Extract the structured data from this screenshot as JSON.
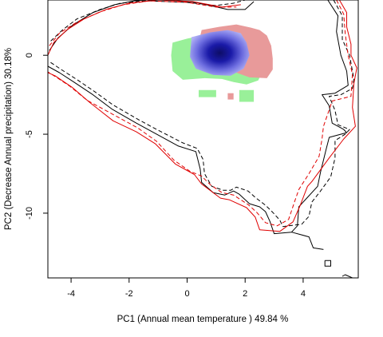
{
  "chart_data": {
    "type": "contour-density",
    "xlabel": "PC1 (Annual mean temperature ) 49.84 %",
    "ylabel": "PC2 (Decrease Annual precipitation) 30.18%",
    "xlim": [
      -4.8,
      5.9
    ],
    "ylim": [
      -14.1,
      3.5
    ],
    "xticks": [
      -4,
      -2,
      0,
      2,
      4
    ],
    "yticks": [
      0,
      -5,
      -10
    ],
    "grid": false,
    "legend": "none",
    "colors": {
      "black_envelope": "#000000",
      "red_envelope": "#e00000",
      "overlap_density": "#1a1aa8",
      "green_only": "#99f099",
      "red_only": "#e89a9a"
    },
    "series": [
      {
        "line_color": "#000000",
        "dash": "solid",
        "points": [
          [
            -4.75,
            0.3
          ],
          [
            -4.45,
            1.1
          ],
          [
            -3.95,
            1.9
          ],
          [
            -3.25,
            2.7
          ],
          [
            -2.5,
            3.2
          ],
          [
            -1.8,
            3.45
          ],
          [
            -1.0,
            3.55
          ],
          [
            0.3,
            3.35
          ],
          [
            1.4,
            2.9
          ],
          [
            2.0,
            2.9
          ],
          [
            2.3,
            3.4
          ]
        ]
      },
      {
        "line_color": "#000000",
        "dash": "solid",
        "points": [
          [
            4.85,
            3.5
          ],
          [
            5.2,
            2.5
          ],
          [
            5.15,
            1.5
          ],
          [
            5.3,
            0.0
          ],
          [
            5.5,
            -1.0
          ],
          [
            5.55,
            -1.9
          ],
          [
            5.1,
            -2.4
          ],
          [
            4.65,
            -2.5
          ],
          [
            4.9,
            -3.2
          ],
          [
            5.0,
            -4.3
          ],
          [
            5.4,
            -4.7
          ],
          [
            5.5,
            -4.9
          ],
          [
            4.9,
            -5.2
          ],
          [
            4.8,
            -5.9
          ],
          [
            4.6,
            -7.4
          ],
          [
            4.5,
            -8.3
          ],
          [
            4.05,
            -9.2
          ],
          [
            3.85,
            -9.6
          ],
          [
            3.8,
            -10.8
          ],
          [
            3.6,
            -11.2
          ],
          [
            3.0,
            -11.3
          ],
          [
            2.85,
            -10.5
          ],
          [
            2.7,
            -9.9
          ],
          [
            2.5,
            -9.6
          ],
          [
            2.15,
            -9.4
          ],
          [
            1.8,
            -8.8
          ],
          [
            1.6,
            -8.6
          ],
          [
            1.3,
            -8.85
          ],
          [
            0.9,
            -8.7
          ],
          [
            0.5,
            -8.05
          ],
          [
            0.45,
            -7.2
          ],
          [
            0.3,
            -6.1
          ],
          [
            -0.3,
            -5.75
          ],
          [
            -1.15,
            -4.9
          ],
          [
            -1.75,
            -4.3
          ],
          [
            -2.6,
            -3.4
          ],
          [
            -3.25,
            -2.5
          ],
          [
            -3.9,
            -1.7
          ],
          [
            -4.4,
            -1.1
          ],
          [
            -4.8,
            -0.7
          ]
        ]
      },
      {
        "line_color": "#000000",
        "dash": "solid",
        "points": [
          [
            3.6,
            -11.2
          ],
          [
            4.2,
            -11.5
          ],
          [
            4.35,
            -12.2
          ],
          [
            4.7,
            -12.3
          ]
        ]
      },
      {
        "line_color": "#000000",
        "dash": "solid",
        "points": [
          [
            4.75,
            -13.0
          ],
          [
            4.95,
            -13.0
          ],
          [
            4.95,
            -13.35
          ],
          [
            4.75,
            -13.35
          ],
          [
            4.75,
            -13.0
          ]
        ]
      },
      {
        "line_color": "#000000",
        "dash": "solid",
        "points": [
          [
            5.35,
            -14.0
          ],
          [
            5.45,
            -13.9
          ],
          [
            5.7,
            -14.1
          ]
        ]
      },
      {
        "line_color": "#000000",
        "dash": "dashed",
        "points": [
          [
            -4.7,
            0.9
          ],
          [
            -4.3,
            1.6
          ],
          [
            -3.8,
            2.3
          ],
          [
            -3.0,
            2.9
          ],
          [
            -2.3,
            3.3
          ],
          [
            -1.4,
            3.45
          ],
          [
            0.0,
            3.35
          ],
          [
            1.0,
            3.15
          ],
          [
            1.6,
            3.3
          ],
          [
            2.0,
            3.5
          ]
        ]
      },
      {
        "line_color": "#000000",
        "dash": "dashed",
        "points": [
          [
            5.05,
            3.5
          ],
          [
            5.35,
            2.5
          ],
          [
            5.35,
            1.0
          ],
          [
            5.6,
            0.0
          ],
          [
            5.75,
            -1.5
          ],
          [
            5.7,
            -2.1
          ],
          [
            5.3,
            -2.5
          ],
          [
            4.9,
            -2.6
          ],
          [
            5.1,
            -3.5
          ],
          [
            5.2,
            -4.4
          ],
          [
            5.6,
            -4.7
          ],
          [
            5.45,
            -5.0
          ],
          [
            5.1,
            -5.4
          ],
          [
            5.1,
            -6.5
          ],
          [
            4.95,
            -7.7
          ],
          [
            4.6,
            -8.6
          ],
          [
            4.3,
            -9.3
          ],
          [
            4.2,
            -10.2
          ],
          [
            3.95,
            -10.7
          ],
          [
            3.3,
            -10.85
          ],
          [
            3.2,
            -10.45
          ],
          [
            2.95,
            -9.95
          ],
          [
            2.7,
            -9.5
          ],
          [
            2.35,
            -9.0
          ],
          [
            2.1,
            -8.6
          ],
          [
            1.7,
            -8.35
          ],
          [
            1.5,
            -8.55
          ],
          [
            1.25,
            -8.55
          ],
          [
            0.85,
            -8.3
          ],
          [
            0.6,
            -7.5
          ],
          [
            0.55,
            -6.6
          ],
          [
            0.35,
            -5.9
          ],
          [
            -0.15,
            -5.55
          ],
          [
            -1.05,
            -4.7
          ],
          [
            -1.7,
            -4.05
          ],
          [
            -2.55,
            -3.15
          ],
          [
            -3.15,
            -2.35
          ],
          [
            -3.75,
            -1.6
          ],
          [
            -4.3,
            -0.95
          ],
          [
            -4.75,
            -0.4
          ]
        ]
      },
      {
        "line_color": "#e00000",
        "dash": "solid",
        "points": [
          [
            -4.8,
            0.0
          ],
          [
            -4.6,
            0.8
          ],
          [
            -4.15,
            1.6
          ],
          [
            -3.55,
            2.3
          ],
          [
            -2.8,
            2.9
          ],
          [
            -2.0,
            3.3
          ],
          [
            -1.0,
            3.5
          ],
          [
            0.2,
            3.4
          ],
          [
            1.2,
            3.05
          ],
          [
            1.85,
            3.2
          ]
        ]
      },
      {
        "line_color": "#e00000",
        "dash": "solid",
        "points": [
          [
            5.25,
            3.5
          ],
          [
            5.5,
            2.7
          ],
          [
            5.5,
            1.8
          ],
          [
            5.65,
            0.7
          ],
          [
            5.65,
            0.0
          ],
          [
            5.85,
            -0.8
          ],
          [
            5.75,
            -1.8
          ],
          [
            5.7,
            -3.3
          ],
          [
            5.8,
            -4.5
          ],
          [
            5.4,
            -5.3
          ],
          [
            4.9,
            -6.5
          ],
          [
            4.3,
            -8.0
          ],
          [
            4.15,
            -8.3
          ],
          [
            3.9,
            -9.5
          ],
          [
            3.65,
            -10.55
          ],
          [
            3.2,
            -11.15
          ],
          [
            2.5,
            -11.05
          ],
          [
            2.35,
            -10.25
          ],
          [
            2.05,
            -9.65
          ],
          [
            1.45,
            -9.15
          ],
          [
            1.15,
            -9.05
          ],
          [
            0.5,
            -8.15
          ],
          [
            0.25,
            -7.55
          ],
          [
            -0.4,
            -6.9
          ],
          [
            -1.1,
            -5.6
          ],
          [
            -1.75,
            -4.85
          ],
          [
            -2.55,
            -4.15
          ],
          [
            -3.35,
            -3.0
          ],
          [
            -3.95,
            -2.05
          ],
          [
            -4.55,
            -1.3
          ],
          [
            -4.8,
            -1.1
          ]
        ]
      },
      {
        "line_color": "#e00000",
        "dash": "dashed",
        "points": [
          [
            -4.75,
            0.6
          ],
          [
            -4.4,
            1.4
          ],
          [
            -3.8,
            2.1
          ],
          [
            -3.0,
            2.75
          ],
          [
            -2.2,
            3.2
          ],
          [
            -1.3,
            3.45
          ],
          [
            0.0,
            3.35
          ],
          [
            1.0,
            3.05
          ],
          [
            1.7,
            3.05
          ]
        ]
      },
      {
        "line_color": "#e00000",
        "dash": "dashed",
        "points": [
          [
            5.15,
            3.5
          ],
          [
            5.4,
            2.6
          ],
          [
            5.45,
            1.4
          ],
          [
            5.55,
            0.0
          ],
          [
            5.7,
            -1.2
          ],
          [
            5.65,
            -2.6
          ],
          [
            5.0,
            -2.9
          ],
          [
            4.7,
            -4.5
          ],
          [
            4.65,
            -5.3
          ],
          [
            4.55,
            -6.4
          ],
          [
            4.2,
            -7.5
          ],
          [
            3.85,
            -8.5
          ],
          [
            3.7,
            -9.3
          ],
          [
            3.5,
            -10.4
          ],
          [
            3.1,
            -10.8
          ],
          [
            2.7,
            -10.6
          ],
          [
            2.4,
            -9.95
          ],
          [
            2.1,
            -9.45
          ],
          [
            1.6,
            -8.85
          ],
          [
            1.2,
            -8.7
          ],
          [
            0.8,
            -8.2
          ],
          [
            0.5,
            -7.65
          ],
          [
            0.1,
            -7.35
          ],
          [
            -0.45,
            -6.65
          ],
          [
            -1.05,
            -5.45
          ],
          [
            -1.7,
            -4.6
          ],
          [
            -2.6,
            -3.7
          ],
          [
            -3.45,
            -2.85
          ],
          [
            -4.05,
            -1.95
          ],
          [
            -4.5,
            -1.4
          ],
          [
            -4.8,
            -1.05
          ]
        ]
      }
    ],
    "density_regions": [
      {
        "category": "green_only",
        "points": [
          [
            -0.5,
            0.8
          ],
          [
            0.0,
            1.05
          ],
          [
            0.65,
            1.3
          ],
          [
            1.2,
            1.45
          ],
          [
            1.8,
            1.55
          ],
          [
            2.3,
            1.35
          ],
          [
            2.7,
            0.9
          ],
          [
            2.85,
            0.3
          ],
          [
            2.7,
            -0.6
          ],
          [
            2.45,
            -1.6
          ],
          [
            2.05,
            -1.85
          ],
          [
            1.6,
            -1.7
          ],
          [
            1.2,
            -1.5
          ],
          [
            0.6,
            -1.45
          ],
          [
            -0.15,
            -1.55
          ],
          [
            -0.5,
            -1.0
          ],
          [
            -0.55,
            0.0
          ]
        ]
      },
      {
        "category": "green_only",
        "points": [
          [
            0.4,
            -2.2
          ],
          [
            1.0,
            -2.2
          ],
          [
            1.0,
            -2.65
          ],
          [
            0.4,
            -2.65
          ]
        ]
      },
      {
        "category": "green_only",
        "points": [
          [
            1.8,
            -2.2
          ],
          [
            2.3,
            -2.2
          ],
          [
            2.3,
            -2.95
          ],
          [
            1.8,
            -2.95
          ]
        ]
      },
      {
        "category": "red_only",
        "points": [
          [
            0.5,
            1.6
          ],
          [
            1.1,
            1.8
          ],
          [
            1.7,
            1.95
          ],
          [
            2.2,
            1.75
          ],
          [
            2.5,
            1.6
          ],
          [
            2.75,
            1.25
          ],
          [
            2.9,
            0.6
          ],
          [
            2.95,
            -0.2
          ],
          [
            2.95,
            -0.9
          ],
          [
            2.75,
            -1.45
          ],
          [
            2.15,
            -1.4
          ],
          [
            1.7,
            -1.1
          ],
          [
            0.9,
            -0.7
          ],
          [
            0.6,
            -0.2
          ],
          [
            0.4,
            0.8
          ]
        ]
      },
      {
        "category": "red_only",
        "points": [
          [
            1.4,
            -2.4
          ],
          [
            1.6,
            -2.4
          ],
          [
            1.6,
            -2.8
          ],
          [
            1.4,
            -2.8
          ]
        ]
      },
      {
        "category": "overlap_density",
        "points": [
          [
            0.15,
            1.15
          ],
          [
            0.8,
            1.45
          ],
          [
            1.4,
            1.6
          ],
          [
            1.85,
            1.4
          ],
          [
            2.05,
            0.8
          ],
          [
            2.15,
            0.0
          ],
          [
            1.95,
            -0.85
          ],
          [
            1.5,
            -1.3
          ],
          [
            0.9,
            -1.25
          ],
          [
            0.3,
            -0.85
          ],
          [
            0.1,
            -0.1
          ]
        ]
      }
    ],
    "density_peak": [
      1.1,
      0.2
    ]
  }
}
